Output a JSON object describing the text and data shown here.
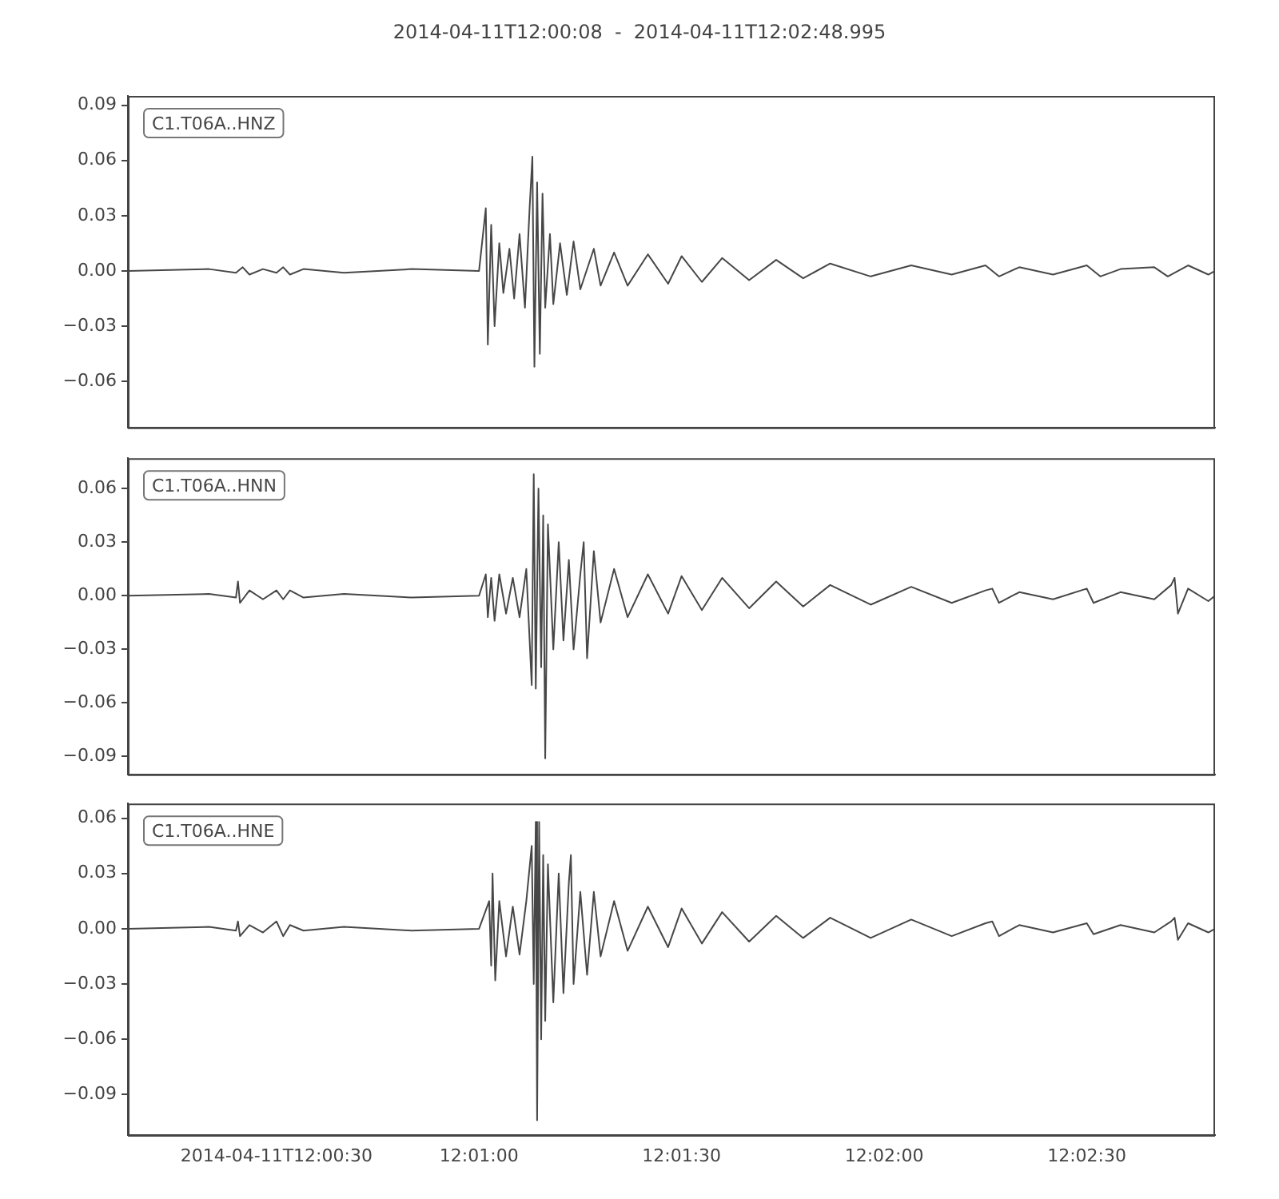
{
  "chart_data": [
    {
      "type": "line",
      "title": "2014-04-11T12:00:08  -  2014-04-11T12:02:48.995",
      "legend": "top left",
      "marker": "none",
      "line_style": "solid",
      "tick_labels": "y",
      "xlim": [
        "2014-04-11T12:00:08",
        "2014-04-11T12:02:48.995"
      ],
      "ylim": [
        -0.085,
        0.095
      ],
      "yticks": [
        {
          "value": -0.06,
          "label": "−0.06"
        },
        {
          "value": -0.03,
          "label": "−0.03"
        },
        {
          "value": 0,
          "label": "0.00"
        },
        0.03,
        0.06,
        0.09
      ],
      "series": [
        {
          "name": "C1.T06A..HNZ",
          "color": "#474747",
          "x": [
            "2014-04-11T12:00:08",
            "2014-04-11T12:00:20",
            "2014-04-11T12:00:24",
            "2014-04-11T12:00:25",
            "2014-04-11T12:00:26",
            "2014-04-11T12:00:28",
            "2014-04-11T12:00:30",
            "2014-04-11T12:00:31",
            "2014-04-11T12:00:32",
            "2014-04-11T12:00:34",
            "2014-04-11T12:00:40",
            "2014-04-11T12:00:50",
            "2014-04-11T12:01:00",
            "2014-04-11T12:01:01",
            "2014-04-11T12:01:01.3",
            "2014-04-11T12:01:01.8",
            "2014-04-11T12:01:02.3",
            "2014-04-11T12:01:03",
            "2014-04-11T12:01:03.6",
            "2014-04-11T12:01:04.5",
            "2014-04-11T12:01:05.2",
            "2014-04-11T12:01:06",
            "2014-04-11T12:01:06.8",
            "2014-04-11T12:01:07.5",
            "2014-04-11T12:01:07.9",
            "2014-04-11T12:01:08.2",
            "2014-04-11T12:01:08.6",
            "2014-04-11T12:01:09",
            "2014-04-11T12:01:09.4",
            "2014-04-11T12:01:09.8",
            "2014-04-11T12:01:10.5",
            "2014-04-11T12:01:11",
            "2014-04-11T12:01:12",
            "2014-04-11T12:01:13",
            "2014-04-11T12:01:14",
            "2014-04-11T12:01:15",
            "2014-04-11T12:01:17",
            "2014-04-11T12:01:18",
            "2014-04-11T12:01:20",
            "2014-04-11T12:01:22",
            "2014-04-11T12:01:25",
            "2014-04-11T12:01:28",
            "2014-04-11T12:01:30",
            "2014-04-11T12:01:33",
            "2014-04-11T12:01:36",
            "2014-04-11T12:01:40",
            "2014-04-11T12:01:44",
            "2014-04-11T12:01:48",
            "2014-04-11T12:01:52",
            "2014-04-11T12:01:58",
            "2014-04-11T12:02:04",
            "2014-04-11T12:02:10",
            "2014-04-11T12:02:15",
            "2014-04-11T12:02:17",
            "2014-04-11T12:02:20",
            "2014-04-11T12:02:25",
            "2014-04-11T12:02:30",
            "2014-04-11T12:02:32",
            "2014-04-11T12:02:35",
            "2014-04-11T12:02:40",
            "2014-04-11T12:02:42",
            "2014-04-11T12:02:45",
            "2014-04-11T12:02:48",
            "2014-04-11T12:02:48.995"
          ],
          "values": [
            0,
            0.001,
            -0.001,
            0.002,
            -0.002,
            0.001,
            -0.001,
            0.002,
            -0.002,
            0.001,
            -0.001,
            0.001,
            0,
            0.034,
            -0.04,
            0.025,
            -0.03,
            0.015,
            -0.012,
            0.012,
            -0.015,
            0.02,
            -0.02,
            0.035,
            0.062,
            -0.052,
            0.048,
            -0.045,
            0.042,
            -0.02,
            0.02,
            -0.018,
            0.015,
            -0.013,
            0.016,
            -0.01,
            0.012,
            -0.008,
            0.01,
            -0.008,
            0.009,
            -0.007,
            0.008,
            -0.006,
            0.007,
            -0.005,
            0.006,
            -0.004,
            0.004,
            -0.003,
            0.003,
            -0.002,
            0.003,
            -0.003,
            0.002,
            -0.002,
            0.003,
            -0.003,
            0.001,
            0.002,
            -0.003,
            0.003,
            -0.002,
            0
          ]
        }
      ]
    },
    {
      "type": "line",
      "legend": "top left",
      "marker": "none",
      "line_style": "solid",
      "tick_labels": "y",
      "xlim": [
        "2014-04-11T12:00:08",
        "2014-04-11T12:02:48.995"
      ],
      "ylim": [
        -0.1,
        0.077
      ],
      "yticks": [
        {
          "value": -0.09,
          "label": "−0.09"
        },
        {
          "value": -0.06,
          "label": "−0.06"
        },
        {
          "value": -0.03,
          "label": "−0.03"
        },
        {
          "value": 0,
          "label": "0.00"
        },
        0.03,
        0.06
      ],
      "series": [
        {
          "name": "C1.T06A..HNN",
          "color": "#474747",
          "x": [
            "2014-04-11T12:00:08",
            "2014-04-11T12:00:20",
            "2014-04-11T12:00:24",
            "2014-04-11T12:00:24.3",
            "2014-04-11T12:00:24.6",
            "2014-04-11T12:00:26",
            "2014-04-11T12:00:28",
            "2014-04-11T12:00:30",
            "2014-04-11T12:00:31",
            "2014-04-11T12:00:32",
            "2014-04-11T12:00:34",
            "2014-04-11T12:00:40",
            "2014-04-11T12:00:50",
            "2014-04-11T12:01:00",
            "2014-04-11T12:01:01",
            "2014-04-11T12:01:01.3",
            "2014-04-11T12:01:01.8",
            "2014-04-11T12:01:02.3",
            "2014-04-11T12:01:03",
            "2014-04-11T12:01:04",
            "2014-04-11T12:01:05",
            "2014-04-11T12:01:06",
            "2014-04-11T12:01:07",
            "2014-04-11T12:01:07.8",
            "2014-04-11T12:01:08.1",
            "2014-04-11T12:01:08.4",
            "2014-04-11T12:01:08.8",
            "2014-04-11T12:01:09.2",
            "2014-04-11T12:01:09.5",
            "2014-04-11T12:01:09.8",
            "2014-04-11T12:01:10.2",
            "2014-04-11T12:01:11",
            "2014-04-11T12:01:11.8",
            "2014-04-11T12:01:12.5",
            "2014-04-11T12:01:13.3",
            "2014-04-11T12:01:14",
            "2014-04-11T12:01:15",
            "2014-04-11T12:01:15.5",
            "2014-04-11T12:01:16",
            "2014-04-11T12:01:17",
            "2014-04-11T12:01:18",
            "2014-04-11T12:01:20",
            "2014-04-11T12:01:22",
            "2014-04-11T12:01:25",
            "2014-04-11T12:01:28",
            "2014-04-11T12:01:30",
            "2014-04-11T12:01:33",
            "2014-04-11T12:01:36",
            "2014-04-11T12:01:40",
            "2014-04-11T12:01:44",
            "2014-04-11T12:01:48",
            "2014-04-11T12:01:52",
            "2014-04-11T12:01:58",
            "2014-04-11T12:02:04",
            "2014-04-11T12:02:10",
            "2014-04-11T12:02:15",
            "2014-04-11T12:02:16",
            "2014-04-11T12:02:17",
            "2014-04-11T12:02:20",
            "2014-04-11T12:02:25",
            "2014-04-11T12:02:30",
            "2014-04-11T12:02:31",
            "2014-04-11T12:02:35",
            "2014-04-11T12:02:40",
            "2014-04-11T12:02:42.5",
            "2014-04-11T12:02:43",
            "2014-04-11T12:02:43.5",
            "2014-04-11T12:02:45",
            "2014-04-11T12:02:48",
            "2014-04-11T12:02:48.995"
          ],
          "values": [
            0,
            0.001,
            -0.001,
            0.008,
            -0.004,
            0.003,
            -0.002,
            0.003,
            -0.002,
            0.003,
            -0.001,
            0.001,
            -0.001,
            0,
            0.012,
            -0.012,
            0.01,
            -0.014,
            0.012,
            -0.01,
            0.01,
            -0.012,
            0.015,
            -0.05,
            0.068,
            -0.052,
            0.06,
            -0.04,
            0.045,
            -0.091,
            0.04,
            -0.03,
            0.03,
            -0.025,
            0.02,
            -0.03,
            0.012,
            0.03,
            -0.035,
            0.025,
            -0.015,
            0.015,
            -0.012,
            0.012,
            -0.01,
            0.011,
            -0.008,
            0.01,
            -0.007,
            0.008,
            -0.006,
            0.006,
            -0.005,
            0.005,
            -0.004,
            0.003,
            0.004,
            -0.004,
            0.002,
            -0.002,
            0.004,
            -0.004,
            0.002,
            -0.002,
            0.006,
            0.01,
            -0.01,
            0.004,
            -0.003,
            0
          ]
        }
      ]
    },
    {
      "type": "line",
      "legend": "top left",
      "marker": "none",
      "line_style": "solid",
      "xlim": [
        "2014-04-11T12:00:08",
        "2014-04-11T12:02:48.995"
      ],
      "xticks": [
        "2014-04-11T12:00:30",
        {
          "value": "2014-04-11T12:01:00",
          "label": "12:01:00"
        },
        {
          "value": "2014-04-11T12:01:30",
          "label": "12:01:30"
        },
        {
          "value": "2014-04-11T12:02:00",
          "label": "12:02:00"
        },
        {
          "value": "2014-04-11T12:02:30",
          "label": "12:02:30"
        }
      ],
      "ylim": [
        -0.112,
        0.068
      ],
      "yticks": [
        {
          "value": -0.09,
          "label": "−0.09"
        },
        {
          "value": -0.06,
          "label": "−0.06"
        },
        {
          "value": -0.03,
          "label": "−0.03"
        },
        {
          "value": 0,
          "label": "0.00"
        },
        0.03,
        0.06
      ],
      "series": [
        {
          "name": "C1.T06A..HNE",
          "color": "#474747",
          "x": [
            "2014-04-11T12:00:08",
            "2014-04-11T12:00:20",
            "2014-04-11T12:00:24",
            "2014-04-11T12:00:24.3",
            "2014-04-11T12:00:24.6",
            "2014-04-11T12:00:26",
            "2014-04-11T12:00:28",
            "2014-04-11T12:00:30",
            "2014-04-11T12:00:31",
            "2014-04-11T12:00:32",
            "2014-04-11T12:00:34",
            "2014-04-11T12:00:40",
            "2014-04-11T12:00:50",
            "2014-04-11T12:01:00",
            "2014-04-11T12:01:01.5",
            "2014-04-11T12:01:01.8",
            "2014-04-11T12:01:02",
            "2014-04-11T12:01:02.4",
            "2014-04-11T12:01:03",
            "2014-04-11T12:01:04",
            "2014-04-11T12:01:05",
            "2014-04-11T12:01:06",
            "2014-04-11T12:01:07",
            "2014-04-11T12:01:07.8",
            "2014-04-11T12:01:08.1",
            "2014-04-11T12:01:08.4",
            "2014-04-11T12:01:08.6",
            "2014-04-11T12:01:08.9",
            "2014-04-11T12:01:09.2",
            "2014-04-11T12:01:09.5",
            "2014-04-11T12:01:09.8",
            "2014-04-11T12:01:10.2",
            "2014-04-11T12:01:11",
            "2014-04-11T12:01:11.8",
            "2014-04-11T12:01:12.5",
            "2014-04-11T12:01:13.3",
            "2014-04-11T12:01:13.6",
            "2014-04-11T12:01:14",
            "2014-04-11T12:01:15",
            "2014-04-11T12:01:16",
            "2014-04-11T12:01:17",
            "2014-04-11T12:01:18",
            "2014-04-11T12:01:20",
            "2014-04-11T12:01:22",
            "2014-04-11T12:01:25",
            "2014-04-11T12:01:28",
            "2014-04-11T12:01:30",
            "2014-04-11T12:01:33",
            "2014-04-11T12:01:36",
            "2014-04-11T12:01:40",
            "2014-04-11T12:01:44",
            "2014-04-11T12:01:48",
            "2014-04-11T12:01:52",
            "2014-04-11T12:01:58",
            "2014-04-11T12:02:04",
            "2014-04-11T12:02:10",
            "2014-04-11T12:02:15",
            "2014-04-11T12:02:16",
            "2014-04-11T12:02:17",
            "2014-04-11T12:02:20",
            "2014-04-11T12:02:25",
            "2014-04-11T12:02:30",
            "2014-04-11T12:02:31",
            "2014-04-11T12:02:35",
            "2014-04-11T12:02:40",
            "2014-04-11T12:02:42.5",
            "2014-04-11T12:02:43",
            "2014-04-11T12:02:43.5",
            "2014-04-11T12:02:45",
            "2014-04-11T12:02:48",
            "2014-04-11T12:02:48.995"
          ],
          "values": [
            0,
            0.001,
            -0.001,
            0.004,
            -0.004,
            0.002,
            -0.002,
            0.004,
            -0.004,
            0.002,
            -0.001,
            0.001,
            -0.001,
            0,
            0.015,
            -0.02,
            0.03,
            -0.028,
            0.015,
            -0.015,
            0.012,
            -0.014,
            0.015,
            0.045,
            -0.03,
            0.058,
            -0.104,
            0.058,
            -0.06,
            0.04,
            -0.05,
            0.035,
            -0.04,
            0.03,
            -0.035,
            0.025,
            0.04,
            -0.03,
            0.02,
            -0.025,
            0.02,
            -0.015,
            0.015,
            -0.012,
            0.012,
            -0.01,
            0.011,
            -0.008,
            0.009,
            -0.007,
            0.007,
            -0.005,
            0.006,
            -0.005,
            0.005,
            -0.004,
            0.003,
            0.004,
            -0.004,
            0.002,
            -0.002,
            0.003,
            -0.003,
            0.002,
            -0.002,
            0.004,
            0.006,
            -0.006,
            0.003,
            -0.002,
            0
          ]
        }
      ]
    }
  ]
}
